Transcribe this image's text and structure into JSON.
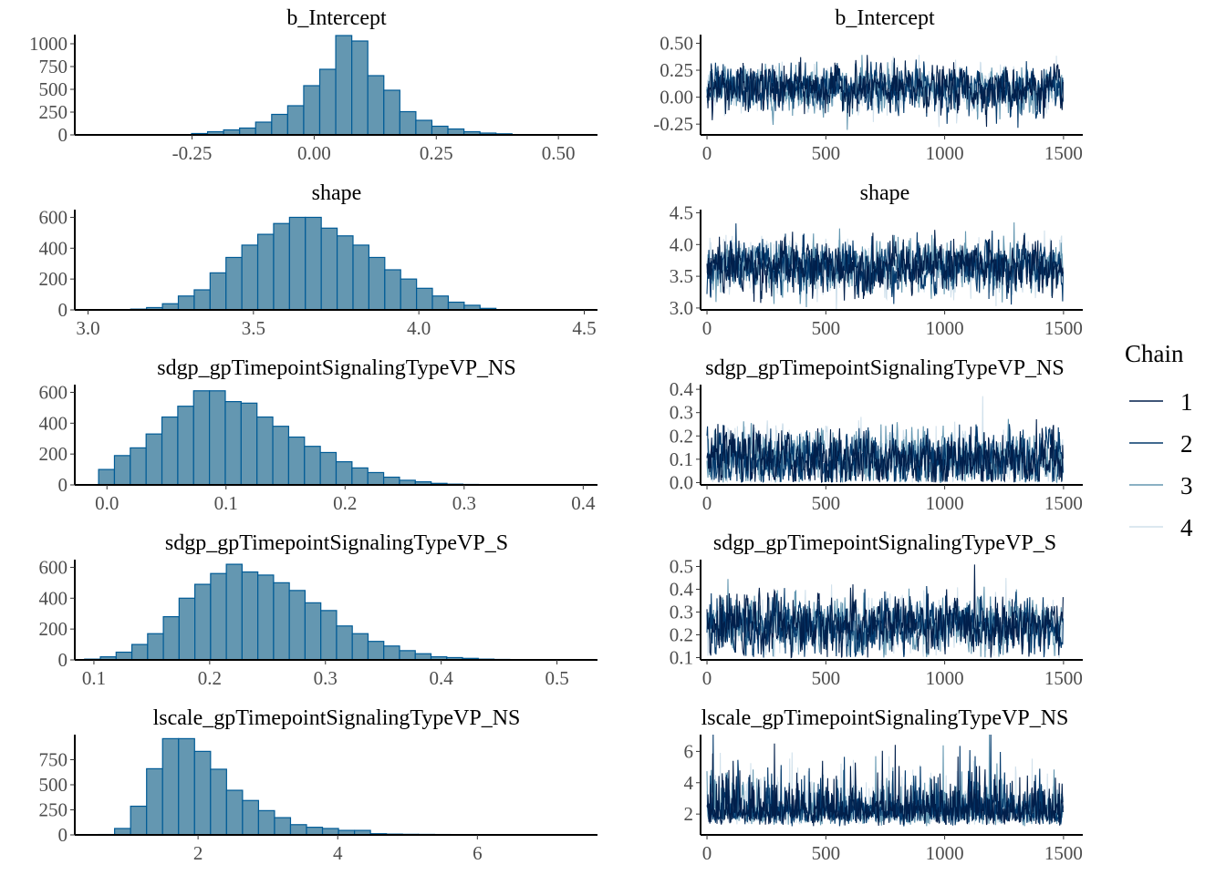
{
  "chart_data": [
    {
      "type": "bar",
      "panel": "histogram",
      "title": "b_Intercept",
      "xlim": [
        -0.49,
        0.58
      ],
      "ylim": [
        0,
        1100
      ],
      "xticks": [
        -0.25,
        0.0,
        0.25,
        0.5
      ],
      "xtick_labels": [
        "-0.25",
        "0.00",
        "0.25",
        "0.50"
      ],
      "yticks": [
        0,
        250,
        500,
        750,
        1000
      ],
      "ytick_labels": [
        "0",
        "250",
        "500",
        "750",
        "1000"
      ],
      "bin_start": -0.251,
      "bin_width": 0.0328,
      "values": [
        15,
        35,
        55,
        75,
        140,
        225,
        320,
        540,
        720,
        1090,
        1030,
        650,
        490,
        255,
        160,
        95,
        65,
        35,
        20,
        12
      ]
    },
    {
      "type": "line",
      "panel": "trace",
      "title": "b_Intercept",
      "xlim": [
        -27,
        1581
      ],
      "ylim": [
        -0.35,
        0.58
      ],
      "xticks": [
        0,
        500,
        1000,
        1500
      ],
      "xtick_labels": [
        "0",
        "500",
        "1000",
        "1500"
      ],
      "yticks": [
        -0.25,
        0,
        0.25,
        0.5
      ],
      "ytick_labels": [
        "-0.25",
        "0.00",
        "0.25",
        "0.50"
      ],
      "iterations": 1500,
      "chain_mean": 0.08,
      "chain_sd": 0.1,
      "chain_min": null
    },
    {
      "type": "bar",
      "panel": "histogram",
      "title": "shape",
      "xlim": [
        2.96,
        4.54
      ],
      "ylim": [
        0,
        650
      ],
      "xticks": [
        3.0,
        3.5,
        4.0,
        4.5
      ],
      "xtick_labels": [
        "3.0",
        "3.5",
        "4.0",
        "4.5"
      ],
      "yticks": [
        0,
        200,
        400,
        600
      ],
      "ytick_labels": [
        "0",
        "200",
        "400",
        "600"
      ],
      "bin_start": 3.129,
      "bin_width": 0.048,
      "values": [
        5,
        15,
        40,
        90,
        130,
        240,
        340,
        420,
        490,
        560,
        600,
        600,
        530,
        480,
        420,
        340,
        260,
        200,
        140,
        90,
        50,
        30,
        10
      ]
    },
    {
      "type": "line",
      "panel": "trace",
      "title": "shape",
      "xlim": [
        -27,
        1581
      ],
      "ylim": [
        2.97,
        4.55
      ],
      "xticks": [
        0,
        500,
        1000,
        1500
      ],
      "xtick_labels": [
        "0",
        "500",
        "1000",
        "1500"
      ],
      "yticks": [
        3.0,
        3.5,
        4.0,
        4.5
      ],
      "ytick_labels": [
        "3.0",
        "3.5",
        "4.0",
        "4.5"
      ],
      "iterations": 1500,
      "chain_mean": 3.65,
      "chain_sd": 0.2,
      "chain_min": null
    },
    {
      "type": "bar",
      "panel": "histogram",
      "title": "sdgp_gpTimepointSignalingTypeVP_NS",
      "xlim": [
        -0.027,
        0.412
      ],
      "ylim": [
        0,
        650
      ],
      "xticks": [
        0.0,
        0.1,
        0.2,
        0.3,
        0.4
      ],
      "xtick_labels": [
        "0.0",
        "0.1",
        "0.2",
        "0.3",
        "0.4"
      ],
      "yticks": [
        0,
        200,
        400,
        600
      ],
      "ytick_labels": [
        "0",
        "200",
        "400",
        "600"
      ],
      "bin_start": -0.007,
      "bin_width": 0.0133,
      "values": [
        100,
        190,
        240,
        330,
        440,
        510,
        610,
        610,
        540,
        530,
        440,
        380,
        310,
        250,
        210,
        150,
        110,
        80,
        50,
        30,
        20,
        10,
        5,
        3
      ]
    },
    {
      "type": "line",
      "panel": "trace",
      "title": "sdgp_gpTimepointSignalingTypeVP_NS",
      "xlim": [
        -27,
        1581
      ],
      "ylim": [
        -0.01,
        0.42
      ],
      "xticks": [
        0,
        500,
        1000,
        1500
      ],
      "xtick_labels": [
        "0",
        "500",
        "1000",
        "1500"
      ],
      "yticks": [
        0.0,
        0.1,
        0.2,
        0.3,
        0.4
      ],
      "ytick_labels": [
        "0.0",
        "0.1",
        "0.2",
        "0.3",
        "0.4"
      ],
      "iterations": 1500,
      "chain_mean": 0.1,
      "chain_sd": 0.06,
      "chain_min": 0.0
    },
    {
      "type": "bar",
      "panel": "histogram",
      "title": "sdgp_gpTimepointSignalingTypeVP_S",
      "xlim": [
        0.0835,
        0.535
      ],
      "ylim": [
        0,
        650
      ],
      "xticks": [
        0.1,
        0.2,
        0.3,
        0.4,
        0.5
      ],
      "xtick_labels": [
        "0.1",
        "0.2",
        "0.3",
        "0.4",
        "0.5"
      ],
      "yticks": [
        0,
        200,
        400,
        600
      ],
      "ytick_labels": [
        "0",
        "200",
        "400",
        "600"
      ],
      "bin_start": 0.092,
      "bin_width": 0.0136,
      "values": [
        5,
        20,
        50,
        100,
        170,
        280,
        400,
        490,
        560,
        620,
        570,
        550,
        500,
        450,
        370,
        320,
        220,
        170,
        120,
        90,
        60,
        40,
        20,
        15,
        10,
        5,
        3,
        2,
        2,
        1,
        1
      ]
    },
    {
      "type": "line",
      "panel": "trace",
      "title": "sdgp_gpTimepointSignalingTypeVP_S",
      "xlim": [
        -27,
        1581
      ],
      "ylim": [
        0.09,
        0.53
      ],
      "xticks": [
        0,
        500,
        1000,
        1500
      ],
      "xtick_labels": [
        "0",
        "500",
        "1000",
        "1500"
      ],
      "yticks": [
        0.1,
        0.2,
        0.3,
        0.4,
        0.5
      ],
      "ytick_labels": [
        "0.1",
        "0.2",
        "0.3",
        "0.4",
        "0.5"
      ],
      "iterations": 1500,
      "chain_mean": 0.24,
      "chain_sd": 0.06,
      "chain_min": 0.1
    },
    {
      "type": "bar",
      "panel": "histogram",
      "title": "lscale_gpTimepointSignalingTypeVP_NS",
      "xlim": [
        0.235,
        7.72
      ],
      "ylim": [
        0,
        1000
      ],
      "xticks": [
        2,
        4,
        6
      ],
      "xtick_labels": [
        "2",
        "4",
        "6"
      ],
      "yticks": [
        0,
        250,
        500,
        750
      ],
      "ytick_labels": [
        "0",
        "250",
        "500",
        "750"
      ],
      "bin_start": 0.576,
      "bin_width": 0.229,
      "values": [
        4,
        64,
        286,
        660,
        960,
        960,
        833,
        655,
        445,
        343,
        242,
        172,
        102,
        76,
        64,
        45,
        45,
        12,
        8,
        6,
        5,
        4,
        3,
        3,
        2,
        2,
        2,
        1,
        1,
        1,
        1
      ]
    },
    {
      "type": "line",
      "panel": "trace",
      "title": "lscale_gpTimepointSignalingTypeVP_NS",
      "xlim": [
        -27,
        1581
      ],
      "ylim": [
        0.67,
        7.07
      ],
      "xticks": [
        0,
        500,
        1000,
        1500
      ],
      "xtick_labels": [
        "0",
        "500",
        "1000",
        "1500"
      ],
      "yticks": [
        2,
        4,
        6
      ],
      "ytick_labels": [
        "2",
        "4",
        "6"
      ],
      "iterations": 1500,
      "chain_mean": 2.2,
      "chain_sd": 0.6,
      "chain_min": 1.0
    }
  ],
  "legend": {
    "title": "Chain",
    "items": [
      {
        "label": "1",
        "color": "#011f4b"
      },
      {
        "label": "2",
        "color": "#03396c"
      },
      {
        "label": "3",
        "color": "#6497b1"
      },
      {
        "label": "4",
        "color": "#d1e1ec"
      }
    ]
  },
  "colors": {
    "hist_fill": "#6497b1",
    "hist_outline": "#005b96",
    "axis": "#000000"
  }
}
